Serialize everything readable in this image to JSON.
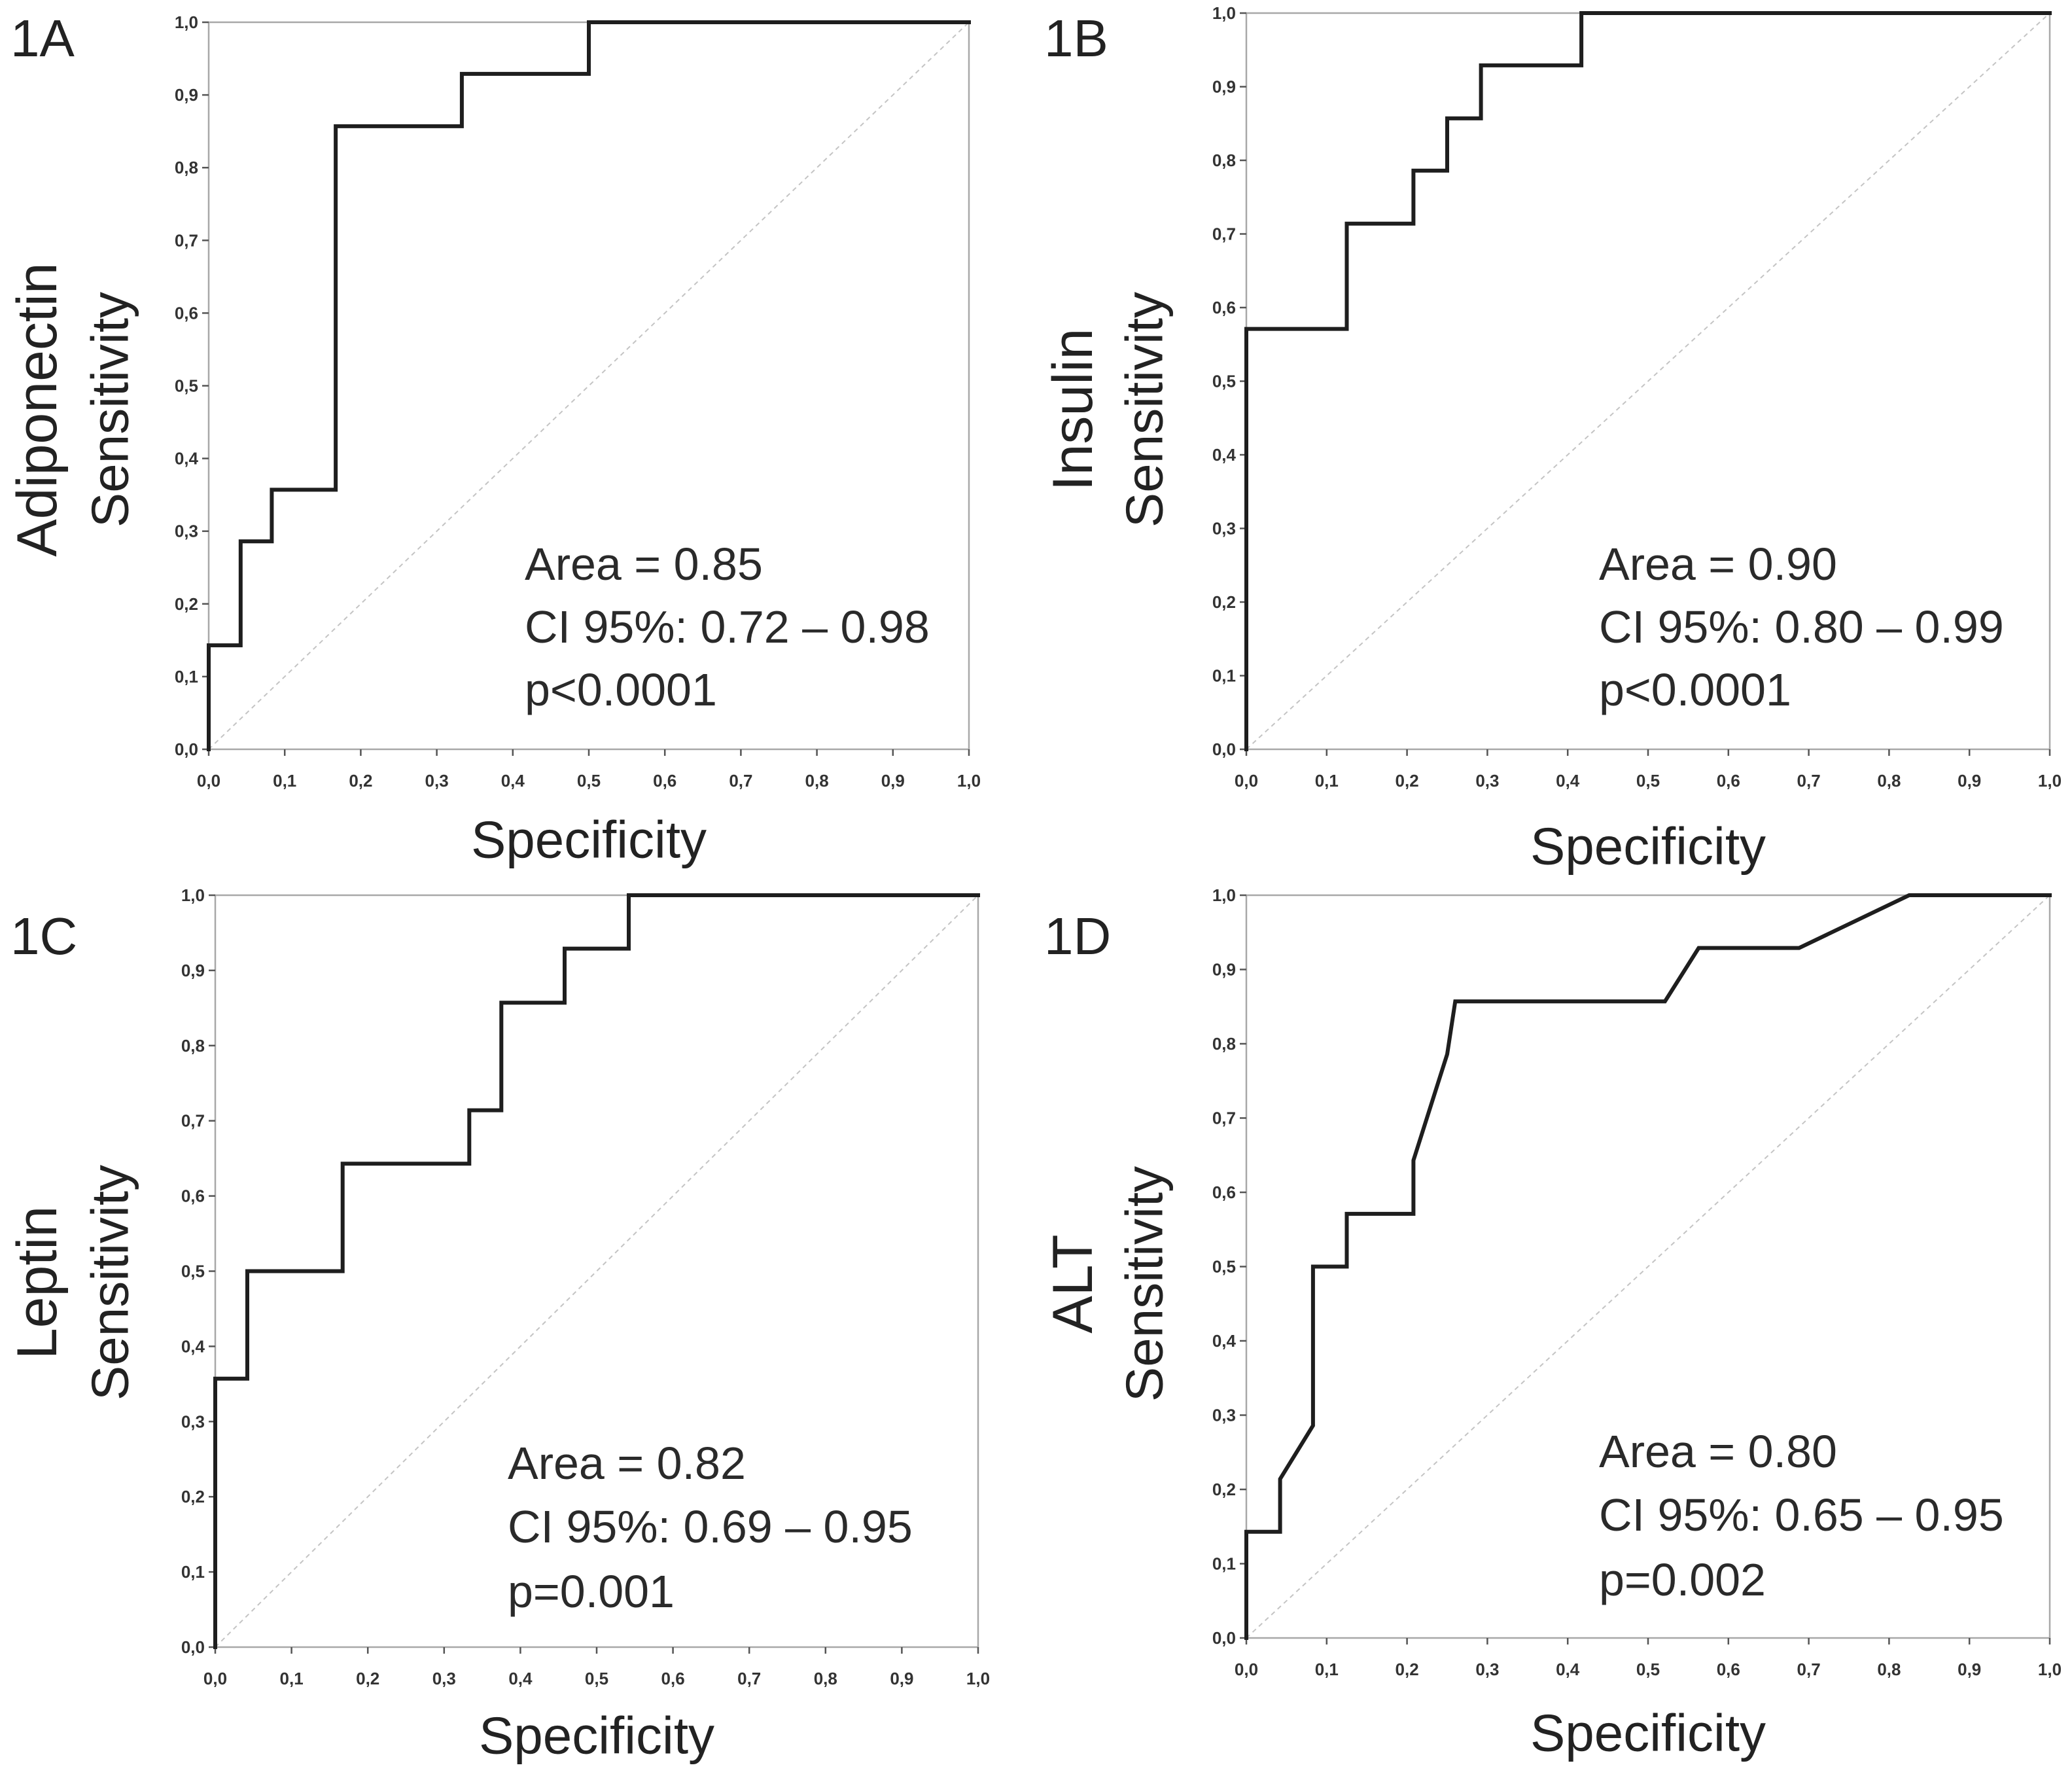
{
  "chart_data": [
    {
      "panel": "1A",
      "type": "line",
      "title": "",
      "variable": "Adiponectin",
      "xlabel": "Specificity",
      "ylabel": "Sensitivity",
      "xlim": [
        0,
        1
      ],
      "ylim": [
        0,
        1
      ],
      "tick_values": [
        0,
        0.1,
        0.2,
        0.3,
        0.4,
        0.5,
        0.6,
        0.7,
        0.8,
        0.9,
        1.0
      ],
      "xticks": [
        "0,0",
        "0,1",
        "0,2",
        "0,3",
        "0,4",
        "0,5",
        "0,6",
        "0,7",
        "0,8",
        "0,9",
        "1,0"
      ],
      "yticks": [
        "0,0",
        "0,1",
        "0,2",
        "0,3",
        "0,4",
        "0,5",
        "0,6",
        "0,7",
        "0,8",
        "0,9",
        "1,0"
      ],
      "series": [
        {
          "x": [
            0,
            0,
            0.042,
            0.042,
            0.083,
            0.083,
            0.167,
            0.167,
            0.333,
            0.333,
            0.5,
            0.5,
            1
          ],
          "y": [
            0,
            0.143,
            0.143,
            0.286,
            0.286,
            0.357,
            0.357,
            0.857,
            0.857,
            0.929,
            0.929,
            1,
            1
          ]
        }
      ],
      "reference_line": {
        "x": [
          0,
          1
        ],
        "y": [
          0,
          1
        ]
      },
      "annotations": [
        "Area = 0.85",
        "CI 95%: 0.72 – 0.98",
        "p<0.0001"
      ]
    },
    {
      "panel": "1B",
      "type": "line",
      "title": "",
      "variable": "Insulin",
      "xlabel": "Specificity",
      "ylabel": "Sensitivity",
      "xlim": [
        0,
        1
      ],
      "ylim": [
        0,
        1
      ],
      "tick_values": [
        0,
        0.1,
        0.2,
        0.3,
        0.4,
        0.5,
        0.6,
        0.7,
        0.8,
        0.9,
        1.0
      ],
      "xticks": [
        "0,0",
        "0,1",
        "0,2",
        "0,3",
        "0,4",
        "0,5",
        "0,6",
        "0,7",
        "0,8",
        "0,9",
        "1,0"
      ],
      "yticks": [
        "0,0",
        "0,1",
        "0,2",
        "0,3",
        "0,4",
        "0,5",
        "0,6",
        "0,7",
        "0,8",
        "0,9",
        "1,0"
      ],
      "series": [
        {
          "x": [
            0,
            0,
            0.125,
            0.125,
            0.208,
            0.208,
            0.25,
            0.25,
            0.292,
            0.292,
            0.417,
            0.417,
            1
          ],
          "y": [
            0,
            0.571,
            0.571,
            0.714,
            0.714,
            0.786,
            0.786,
            0.857,
            0.857,
            0.929,
            0.929,
            1,
            1
          ]
        }
      ],
      "reference_line": {
        "x": [
          0,
          1
        ],
        "y": [
          0,
          1
        ]
      },
      "annotations": [
        "Area = 0.90",
        "CI 95%: 0.80 – 0.99",
        "p<0.0001"
      ]
    },
    {
      "panel": "1C",
      "type": "line",
      "title": "",
      "variable": "Leptin",
      "xlabel": "Specificity",
      "ylabel": "Sensitivity",
      "xlim": [
        0,
        1
      ],
      "ylim": [
        0,
        1
      ],
      "tick_values": [
        0,
        0.1,
        0.2,
        0.3,
        0.4,
        0.5,
        0.6,
        0.7,
        0.8,
        0.9,
        1.0
      ],
      "xticks": [
        "0,0",
        "0,1",
        "0,2",
        "0,3",
        "0,4",
        "0,5",
        "0,6",
        "0,7",
        "0,8",
        "0,9",
        "1,0"
      ],
      "yticks": [
        "0,0",
        "0,1",
        "0,2",
        "0,3",
        "0,4",
        "0,5",
        "0,6",
        "0,7",
        "0,8",
        "0,9",
        "1,0"
      ],
      "series": [
        {
          "x": [
            0,
            0,
            0.042,
            0.042,
            0.167,
            0.167,
            0.333,
            0.333,
            0.375,
            0.375,
            0.458,
            0.458,
            0.542,
            0.542,
            1
          ],
          "y": [
            0,
            0.357,
            0.357,
            0.5,
            0.5,
            0.643,
            0.643,
            0.714,
            0.714,
            0.857,
            0.857,
            0.929,
            0.929,
            1,
            1
          ]
        }
      ],
      "reference_line": {
        "x": [
          0,
          1
        ],
        "y": [
          0,
          1
        ]
      },
      "annotations": [
        "Area = 0.82",
        "CI 95%: 0.69 – 0.95",
        "p=0.001"
      ]
    },
    {
      "panel": "1D",
      "type": "line",
      "title": "",
      "variable": "ALT",
      "xlabel": "Specificity",
      "ylabel": "Sensitivity",
      "xlim": [
        0,
        1
      ],
      "ylim": [
        0,
        1
      ],
      "tick_values": [
        0,
        0.1,
        0.2,
        0.3,
        0.4,
        0.5,
        0.6,
        0.7,
        0.8,
        0.9,
        1.0
      ],
      "xticks": [
        "0,0",
        "0,1",
        "0,2",
        "0,3",
        "0,4",
        "0,5",
        "0,6",
        "0,7",
        "0,8",
        "0,9",
        "1,0"
      ],
      "yticks": [
        "0,0",
        "0,1",
        "0,2",
        "0,3",
        "0,4",
        "0,5",
        "0,6",
        "0,7",
        "0,8",
        "0,9",
        "1,0"
      ],
      "series": [
        {
          "x": [
            0,
            0,
            0.042,
            0.042,
            0.083,
            0.083,
            0.125,
            0.125,
            0.208,
            0.208,
            0.25,
            0.26,
            0.521,
            0.563,
            0.688,
            0.825,
            1
          ],
          "y": [
            0,
            0.143,
            0.143,
            0.214,
            0.286,
            0.5,
            0.5,
            0.571,
            0.571,
            0.643,
            0.786,
            0.857,
            0.857,
            0.929,
            0.929,
            1,
            1
          ]
        }
      ],
      "reference_line": {
        "x": [
          0,
          1
        ],
        "y": [
          0,
          1
        ]
      },
      "annotations": [
        "Area = 0.80",
        "CI 95%: 0.65 – 0.95",
        "p=0.002"
      ]
    }
  ]
}
